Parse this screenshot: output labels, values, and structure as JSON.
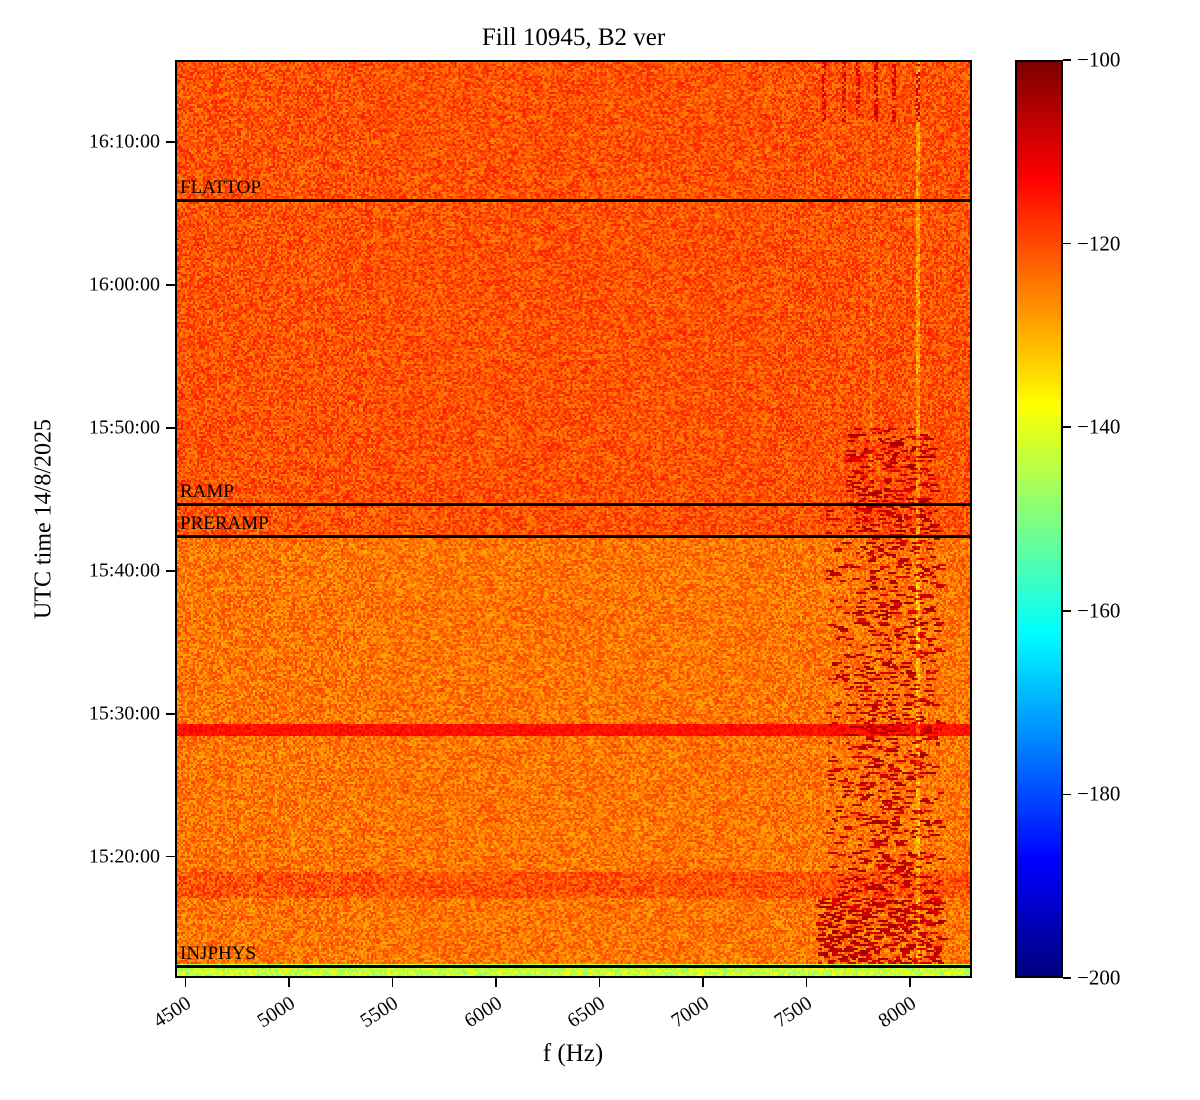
{
  "chart_data": {
    "type": "heatmap",
    "title": "Fill 10945, B2 ver",
    "xlabel": "f (Hz)",
    "ylabel": "UTC time 14/8/2025",
    "xlim": [
      4450,
      8300
    ],
    "x_ticks": [
      "4500",
      "5000",
      "5500",
      "6000",
      "6500",
      "7000",
      "7500",
      "8000"
    ],
    "time_range": [
      "15:11:30",
      "16:15:45"
    ],
    "y_ticks": [
      "15:20:00",
      "15:30:00",
      "15:40:00",
      "15:50:00",
      "16:00:00",
      "16:10:00"
    ],
    "colorbar": {
      "colormap": "jet",
      "min": -200,
      "max": -100,
      "ticks": [
        -100,
        -120,
        -140,
        -160,
        -180,
        -200
      ]
    },
    "annotations": [
      {
        "label": "FLATTOP",
        "time": "16:05:55"
      },
      {
        "label": "RAMP",
        "time": "15:44:40"
      },
      {
        "label": "PRERAMP",
        "time": "15:42:25"
      },
      {
        "label": "INJPHYS",
        "time": "15:12:20"
      }
    ],
    "render_model": {
      "base_db_above_preramp": -120.5,
      "base_db_below_preramp": -124,
      "noise_span_db": 12,
      "injphys_band_db": -143,
      "injphys_noise_span_db": 14,
      "bright_line_time": "15:28:50",
      "bright_line_halfwidth_s": 25,
      "bright_line_db": -114,
      "bright_band_time": "15:17:50",
      "bright_band_halfwidth_s": 55,
      "bright_band_boost_db": 3.5,
      "hot_band_fmin": 7600,
      "hot_band_fmax": 8150,
      "hot_db": -103,
      "persistent_line_f": 8050,
      "top_streak_centers": [
        7590,
        7685,
        7760,
        7845,
        7935,
        8050
      ],
      "top_streak_after": "16:11:30",
      "bottom_cluster_before": "15:17:00"
    },
    "features": [
      "Broadband noise floor near -120 dB (orange) across 4500-8300 Hz",
      "Darker (redder) noise floor below the PRERAMP line",
      "Dark-red intermittent tones between ~7600 and ~8150 Hz before the RAMP",
      "Strong dark-red cluster near 7600-8100 Hz around 15:13-15:17",
      "Vertical red streaks near 7600-8050 Hz after ~16:11",
      "Green-yellow (~-143 dB) injection band below the INJPHYS line",
      "Thin bright yellow horizontal line near 15:28:50"
    ]
  }
}
